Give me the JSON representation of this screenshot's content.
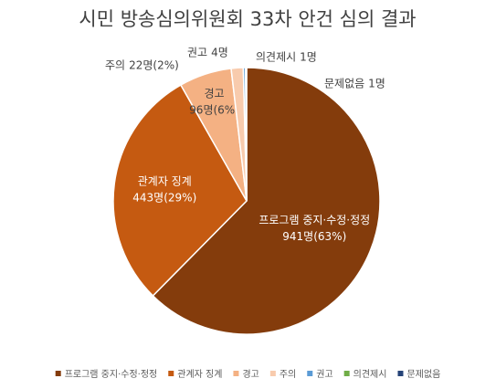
{
  "chart_data": {
    "type": "pie",
    "title": "시민 방송심의위원회 33차 안건 심의 결과",
    "categories": [
      "프로그램 중지·수정·정정",
      "관계자 징계",
      "경고",
      "주의",
      "권고",
      "의견제시",
      "문제없음"
    ],
    "values": [
      941,
      443,
      96,
      22,
      4,
      1,
      1
    ],
    "value_labels": [
      "941명(63%)",
      "443명(29%)",
      "96명(6%)",
      "22명(2%)",
      "4명",
      "1명",
      "1명"
    ],
    "colors": [
      "#843C0C",
      "#C55A11",
      "#F4B183",
      "#F8CBAD",
      "#5B9BD5",
      "#70AD47",
      "#264478"
    ],
    "legend": "bottom"
  }
}
